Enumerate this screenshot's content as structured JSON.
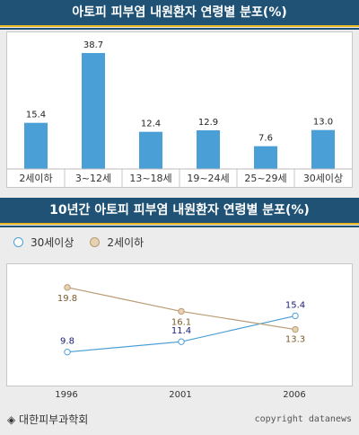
{
  "title1": "아토피 피부염 내원환자 연령별 분포(%)",
  "title2": "10년간 아토피 피부염 내원환자 연령별 분포(%)",
  "chart_data": [
    {
      "type": "bar",
      "title": "아토피 피부염 내원환자 연령별 분포(%)",
      "categories": [
        "2세이하",
        "3~12세",
        "13~18세",
        "19~24세",
        "25~29세",
        "30세이상"
      ],
      "values": [
        15.4,
        38.7,
        12.4,
        12.9,
        7.6,
        13.0
      ],
      "value_labels": [
        "15.4",
        "38.7",
        "12.4",
        "12.9",
        "7.6",
        "13.0"
      ],
      "ylim": [
        0,
        42
      ],
      "color": "#4a9fd6"
    },
    {
      "type": "line",
      "title": "10년간 아토피 피부염 내원환자 연령별 분포(%)",
      "x": [
        "1996",
        "2001",
        "2006"
      ],
      "ylim": [
        6,
        22
      ],
      "series": [
        {
          "name": "30세이상",
          "values": [
            9.8,
            11.4,
            15.4
          ],
          "labels": [
            "9.8",
            "11.4",
            "15.4"
          ],
          "color": "#4a9fd6",
          "label_color": "#1a1a7a"
        },
        {
          "name": "2세이하",
          "values": [
            19.8,
            16.1,
            13.3
          ],
          "labels": [
            "19.8",
            "16.1",
            "13.3"
          ],
          "color": "#b89c73",
          "label_color": "#7a5a2a"
        }
      ],
      "legend_position": "top-left"
    }
  ],
  "footer": {
    "source": "◈ 대한피부과학회",
    "copyright": "copyright datanews"
  }
}
